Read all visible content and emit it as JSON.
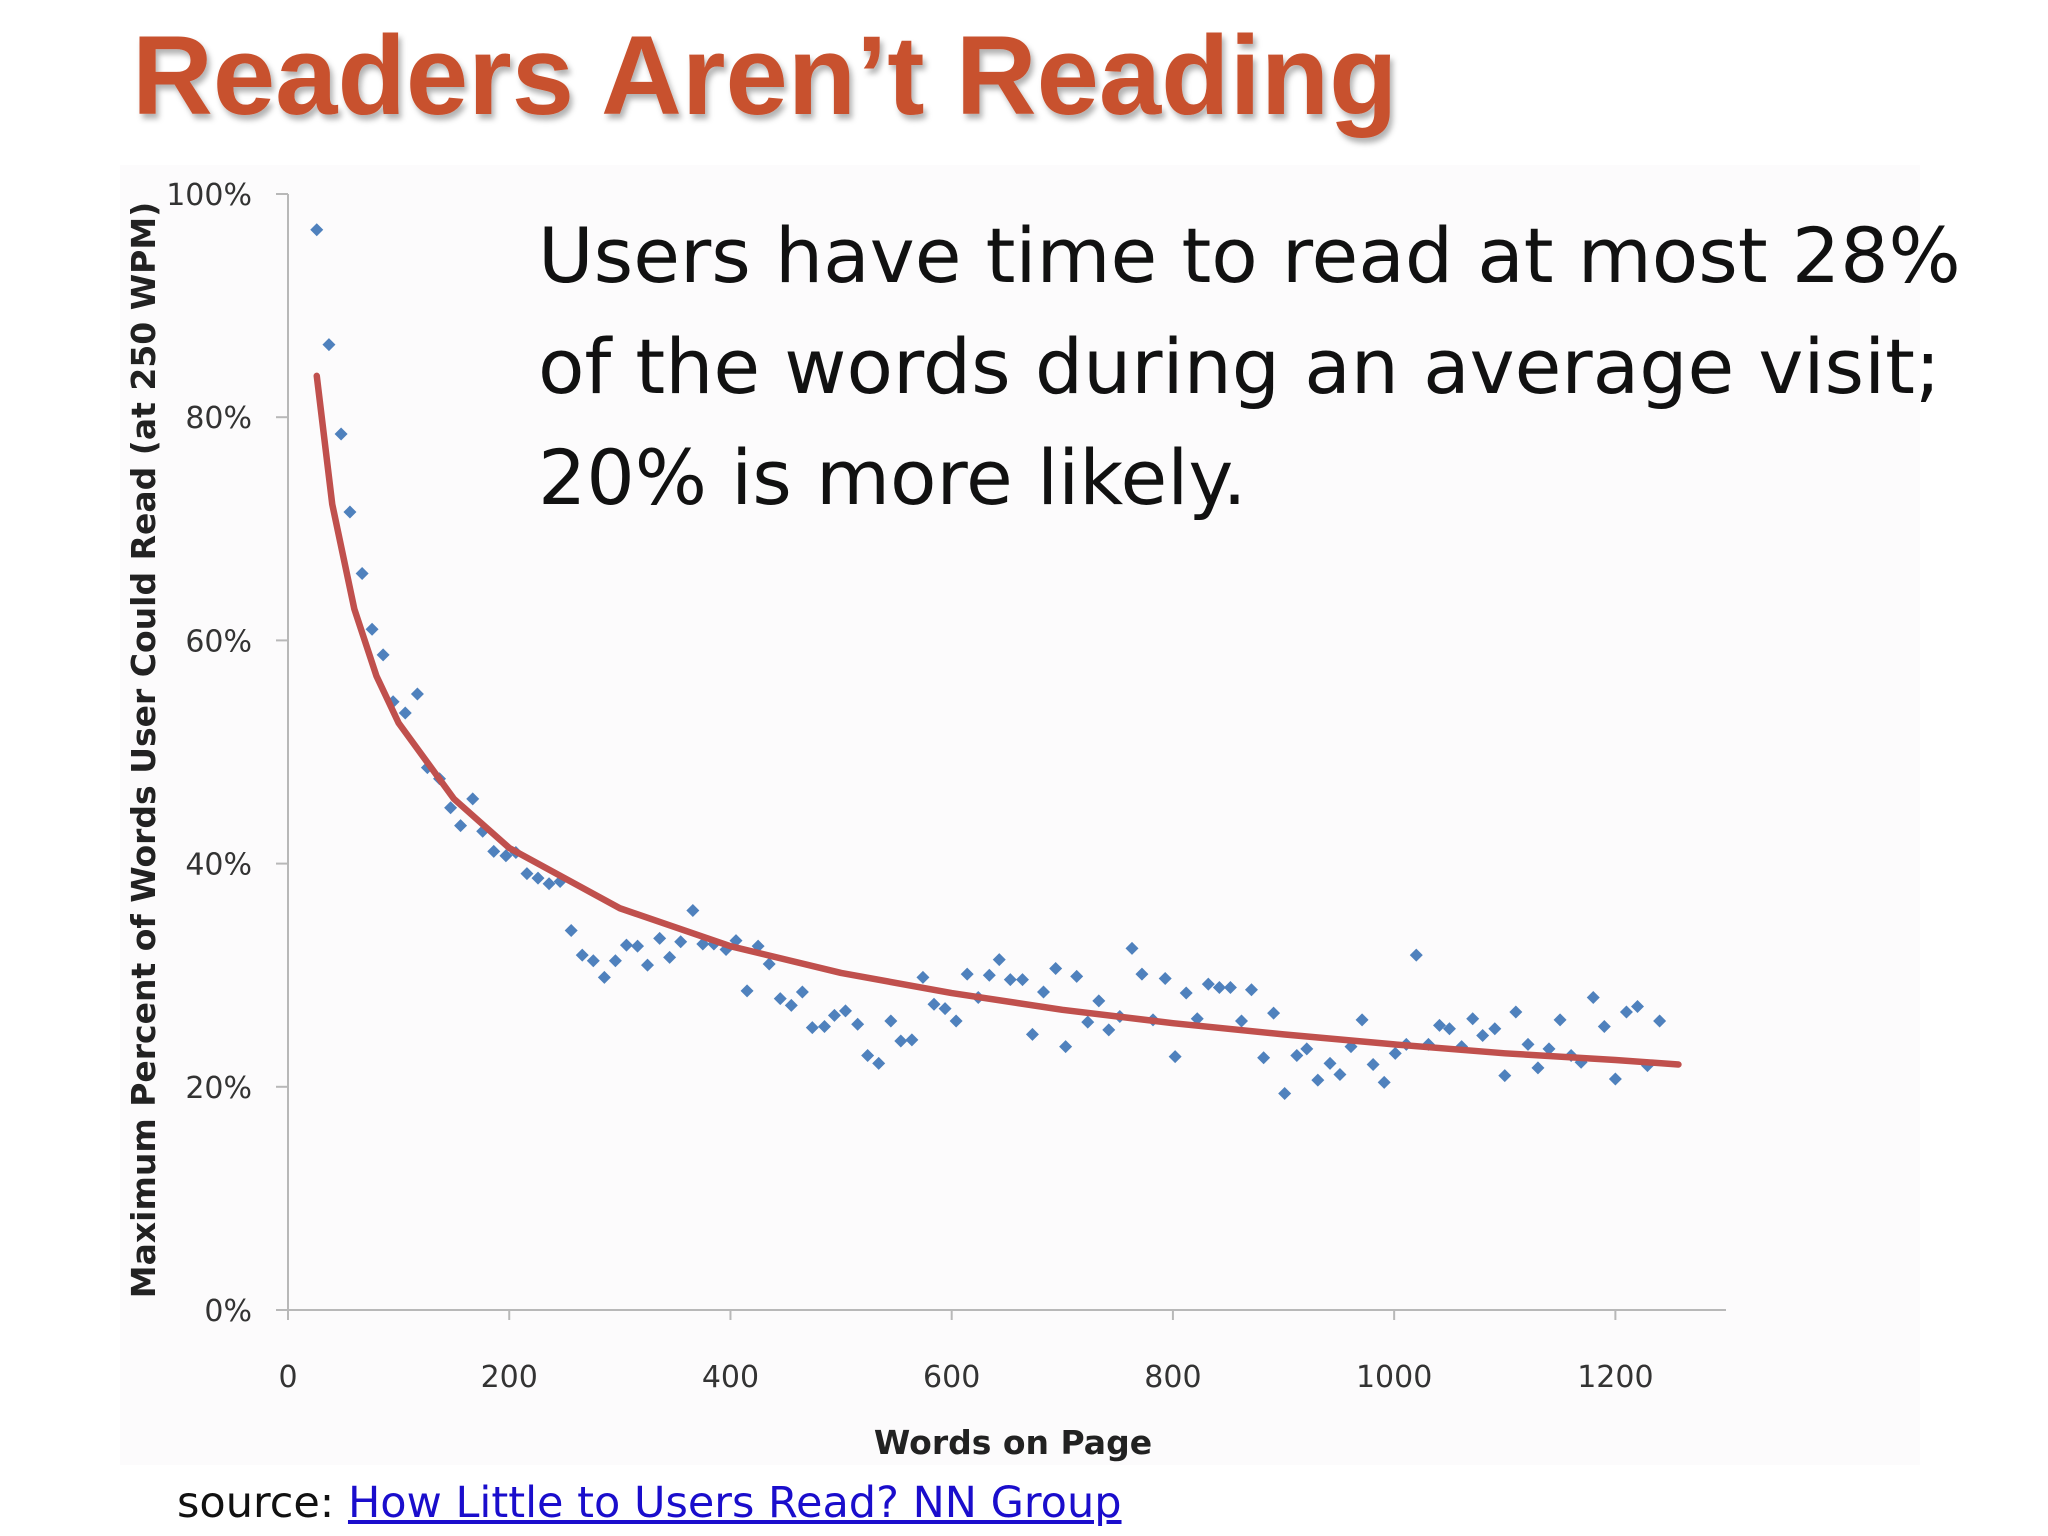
{
  "chart_data": {
    "type": "scatter",
    "title": "Readers Aren’t Reading",
    "annotation": [
      "Users have time to read at most 28%",
      "of the words during an average visit;",
      "20% is more likely."
    ],
    "x_label": "Words on Page",
    "y_label": "Maximum Percent of Words User Could Read (at 250 WPM)",
    "xlim": [
      0,
      1300
    ],
    "xticks": [
      0,
      200,
      400,
      600,
      800,
      1000,
      1200
    ],
    "ylim": [
      0,
      100
    ],
    "yticks": [
      {
        "value": 0,
        "label": "0%"
      },
      {
        "value": 20,
        "label": "20%"
      },
      {
        "value": 40,
        "label": "40%"
      },
      {
        "value": 60,
        "label": "60%"
      },
      {
        "value": 80,
        "label": "80%"
      },
      {
        "value": 100,
        "label": "100%"
      }
    ],
    "series": [
      {
        "type": "scatter",
        "color": "#4f81bd",
        "x": [
          26,
          37,
          48,
          56,
          67,
          76,
          86,
          95,
          106,
          117,
          126,
          137,
          147,
          156,
          167,
          176,
          186,
          197,
          206,
          216,
          226,
          236,
          246,
          256,
          266,
          276,
          286,
          296,
          306,
          316,
          325,
          336,
          345,
          355,
          366,
          375,
          385,
          396,
          405,
          415,
          425,
          435,
          445,
          455,
          465,
          474,
          485,
          494,
          504,
          515,
          524,
          534,
          545,
          554,
          564,
          574,
          584,
          594,
          604,
          614,
          624,
          634,
          643,
          653,
          664,
          673,
          683,
          694,
          703,
          713,
          723,
          733,
          742,
          752,
          763,
          772,
          782,
          793,
          802,
          812,
          822,
          832,
          842,
          852,
          862,
          871,
          882,
          891,
          901,
          912,
          921,
          931,
          942,
          951,
          961,
          971,
          981,
          991,
          1001,
          1011,
          1020,
          1031,
          1041,
          1050,
          1061,
          1071,
          1080,
          1091,
          1100,
          1110,
          1121,
          1130,
          1140,
          1150,
          1160,
          1169,
          1180,
          1190,
          1200,
          1210,
          1220,
          1229,
          1240
        ],
        "values": [
          96.8,
          86.5,
          78.5,
          71.5,
          66,
          61,
          58.7,
          54.5,
          53.5,
          55.2,
          48.6,
          47.6,
          45,
          43.4,
          45.8,
          42.9,
          41.1,
          40.7,
          41,
          39.1,
          38.7,
          38.2,
          38.4,
          34,
          31.8,
          31.3,
          29.8,
          31.3,
          32.7,
          32.6,
          30.9,
          33.3,
          31.6,
          33,
          35.8,
          32.8,
          32.8,
          32.3,
          33.1,
          28.6,
          32.6,
          31,
          27.9,
          27.3,
          28.5,
          25.3,
          25.4,
          26.4,
          26.8,
          25.6,
          22.8,
          22.1,
          25.9,
          24.1,
          24.2,
          29.8,
          27.4,
          27,
          25.9,
          30.1,
          28,
          30,
          31.4,
          29.6,
          29.6,
          24.7,
          28.5,
          30.6,
          23.6,
          29.9,
          25.8,
          27.7,
          25.1,
          26.3,
          32.4,
          30.1,
          26,
          29.7,
          22.7,
          28.4,
          26.1,
          29.2,
          28.9,
          28.9,
          25.9,
          28.7,
          22.6,
          26.6,
          19.4,
          22.8,
          23.4,
          20.6,
          22.1,
          21.1,
          23.6,
          26,
          22,
          20.4,
          23,
          23.8,
          31.8,
          23.8,
          25.5,
          25.2,
          23.6,
          26.1,
          24.6,
          25.2,
          21,
          26.7,
          23.8,
          21.7,
          23.4,
          26,
          22.8,
          22.2,
          28,
          25.4,
          20.7,
          26.7,
          27.2,
          21.9,
          25.9
        ]
      },
      {
        "type": "line",
        "color": "#c0504d",
        "x": [
          26,
          40,
          60,
          80,
          100,
          150,
          200,
          300,
          400,
          500,
          600,
          700,
          800,
          900,
          1000,
          1100,
          1200,
          1257
        ],
        "values": [
          83.7,
          72.2,
          62.8,
          56.8,
          52.6,
          45.8,
          41.4,
          36.0,
          32.6,
          30.2,
          28.4,
          26.9,
          25.7,
          24.7,
          23.8,
          23.0,
          22.4,
          22.0
        ]
      }
    ]
  },
  "source": {
    "prefix": "source:",
    "link": "How Little to Users Read? NN Group"
  }
}
